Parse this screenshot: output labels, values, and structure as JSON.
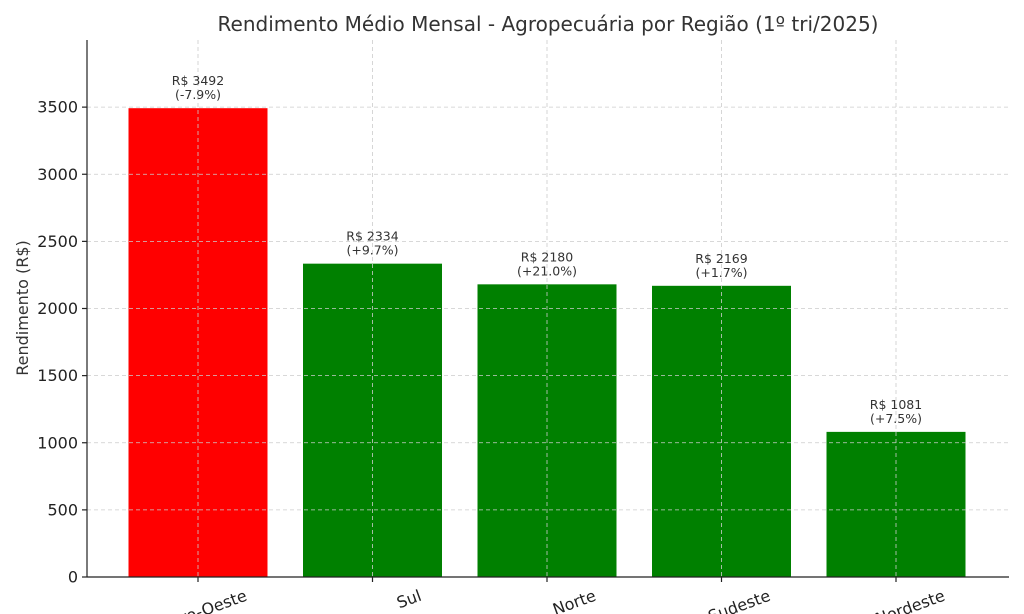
{
  "chart_data": {
    "type": "bar",
    "title": "Rendimento Médio Mensal - Agropecuária por Região (1º tri/2025)",
    "ylabel": "Rendimento (R$)",
    "xlabel": "",
    "categories": [
      "Centro-Oeste",
      "Sul",
      "Norte",
      "Sudeste",
      "Nordeste"
    ],
    "values": [
      3492,
      2334,
      2180,
      2169,
      1081
    ],
    "value_labels": [
      "R$ 3492",
      "R$ 2334",
      "R$ 2180",
      "R$ 2169",
      "R$ 1081"
    ],
    "change_labels": [
      "(-7.9%)",
      "(+9.7%)",
      "(+21.0%)",
      "(+1.7%)",
      "(+7.5%)"
    ],
    "bar_colors": [
      "#ff0000",
      "#008000",
      "#008000",
      "#008000",
      "#008000"
    ],
    "ylim": [
      0,
      4000
    ],
    "yticks": [
      0,
      500,
      1000,
      1500,
      2000,
      2500,
      3000,
      3500
    ],
    "grid": true,
    "x_tick_rotation_deg": -20
  }
}
